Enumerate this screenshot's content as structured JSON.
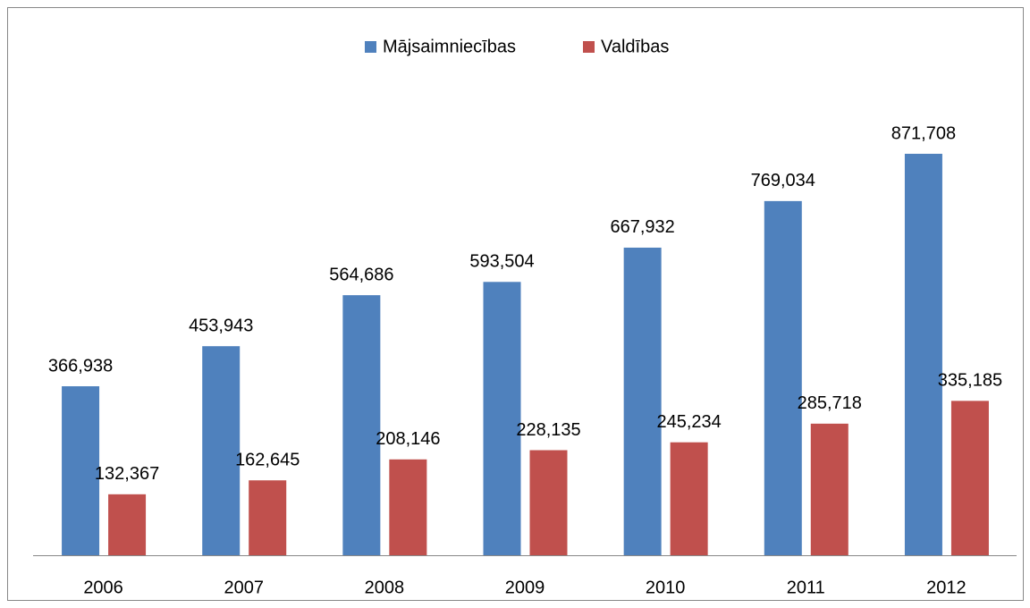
{
  "chart_data": {
    "type": "bar",
    "categories": [
      "2006",
      "2007",
      "2008",
      "2009",
      "2010",
      "2011",
      "2012"
    ],
    "series": [
      {
        "name": "Mājsaimniecības",
        "color": "#4f81bd",
        "values": [
          366938,
          453943,
          564686,
          593504,
          667932,
          769034,
          871708
        ],
        "value_labels": [
          "366,938",
          "453,943",
          "564,686",
          "593,504",
          "667,932",
          "769,034",
          "871,708"
        ]
      },
      {
        "name": "Valdības",
        "color": "#c0504d",
        "values": [
          132367,
          162645,
          208146,
          228135,
          245234,
          285718,
          335185
        ],
        "value_labels": [
          "132,367",
          "162,645",
          "208,146",
          "228,135",
          "245,234",
          "285,718",
          "335,185"
        ]
      }
    ],
    "legend": "top"
  }
}
